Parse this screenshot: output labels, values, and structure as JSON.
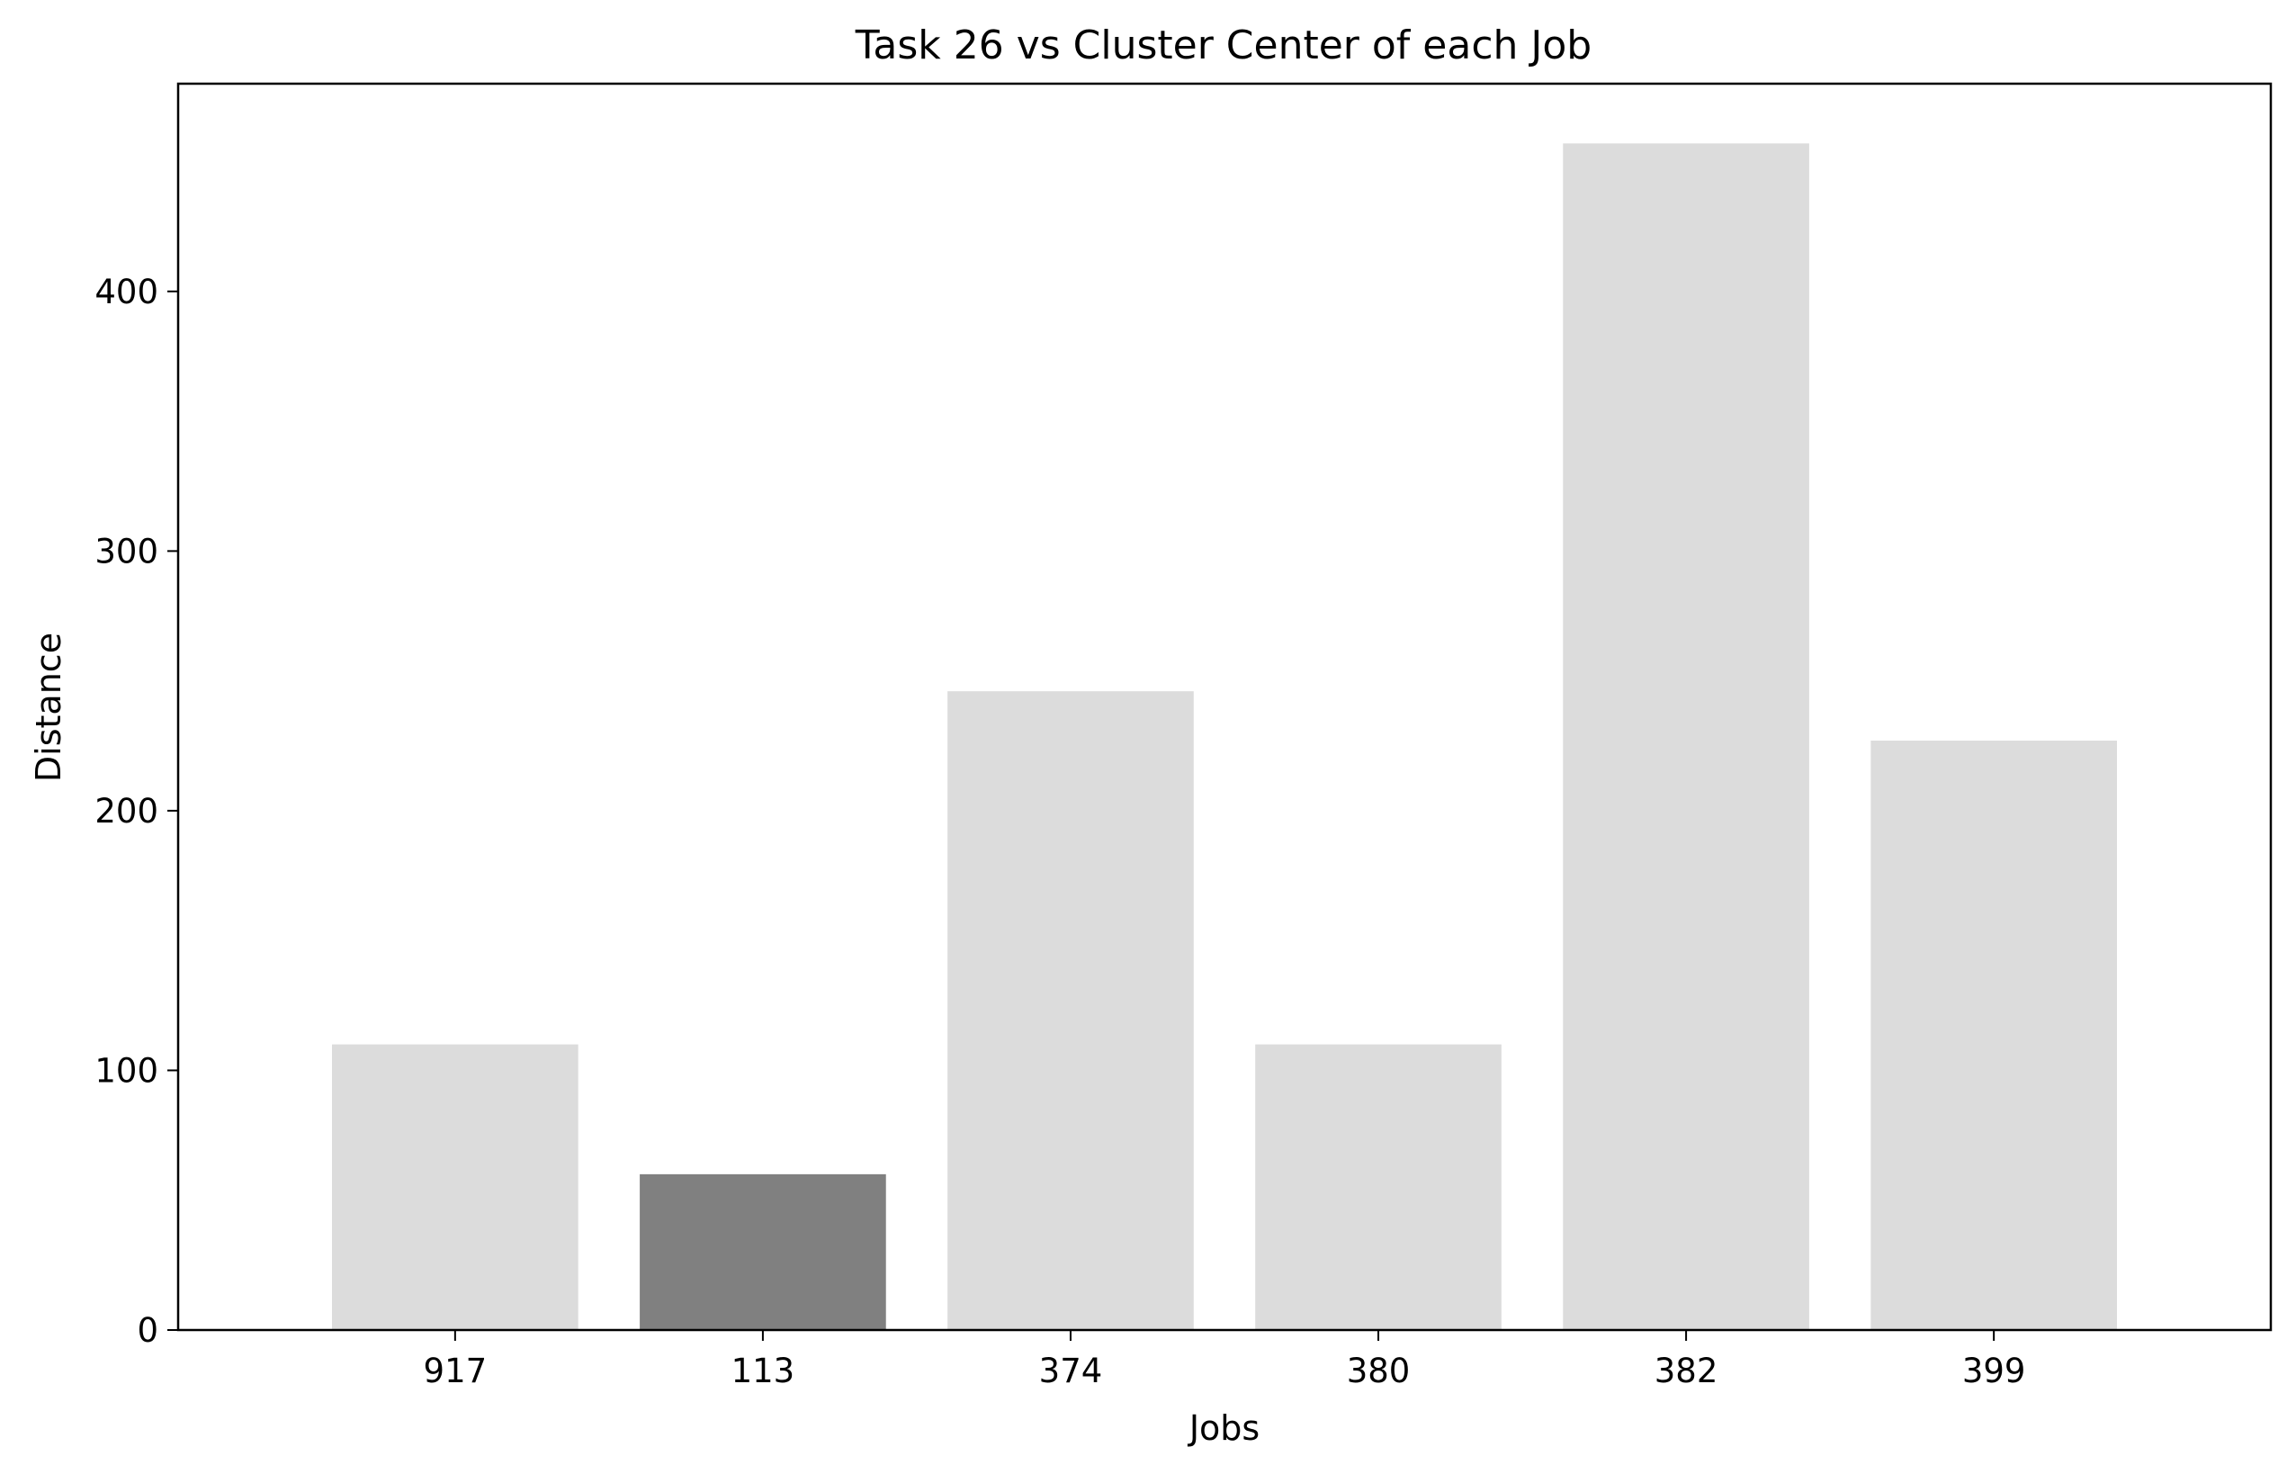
{
  "chart_data": {
    "type": "bar",
    "title": "Task 26 vs Cluster Center of each Job",
    "xlabel": "Jobs",
    "ylabel": "Distance",
    "categories": [
      "917",
      "113",
      "374",
      "380",
      "382",
      "399"
    ],
    "values": [
      110,
      60,
      246,
      110,
      457,
      227
    ],
    "highlight_index": 1,
    "ylim": [
      0,
      480
    ],
    "yticks": [
      0,
      100,
      200,
      300,
      400
    ],
    "grid": false,
    "colors": {
      "bar": "#dcdcdc",
      "highlight_bar": "#808080",
      "axes": "#000000"
    }
  }
}
